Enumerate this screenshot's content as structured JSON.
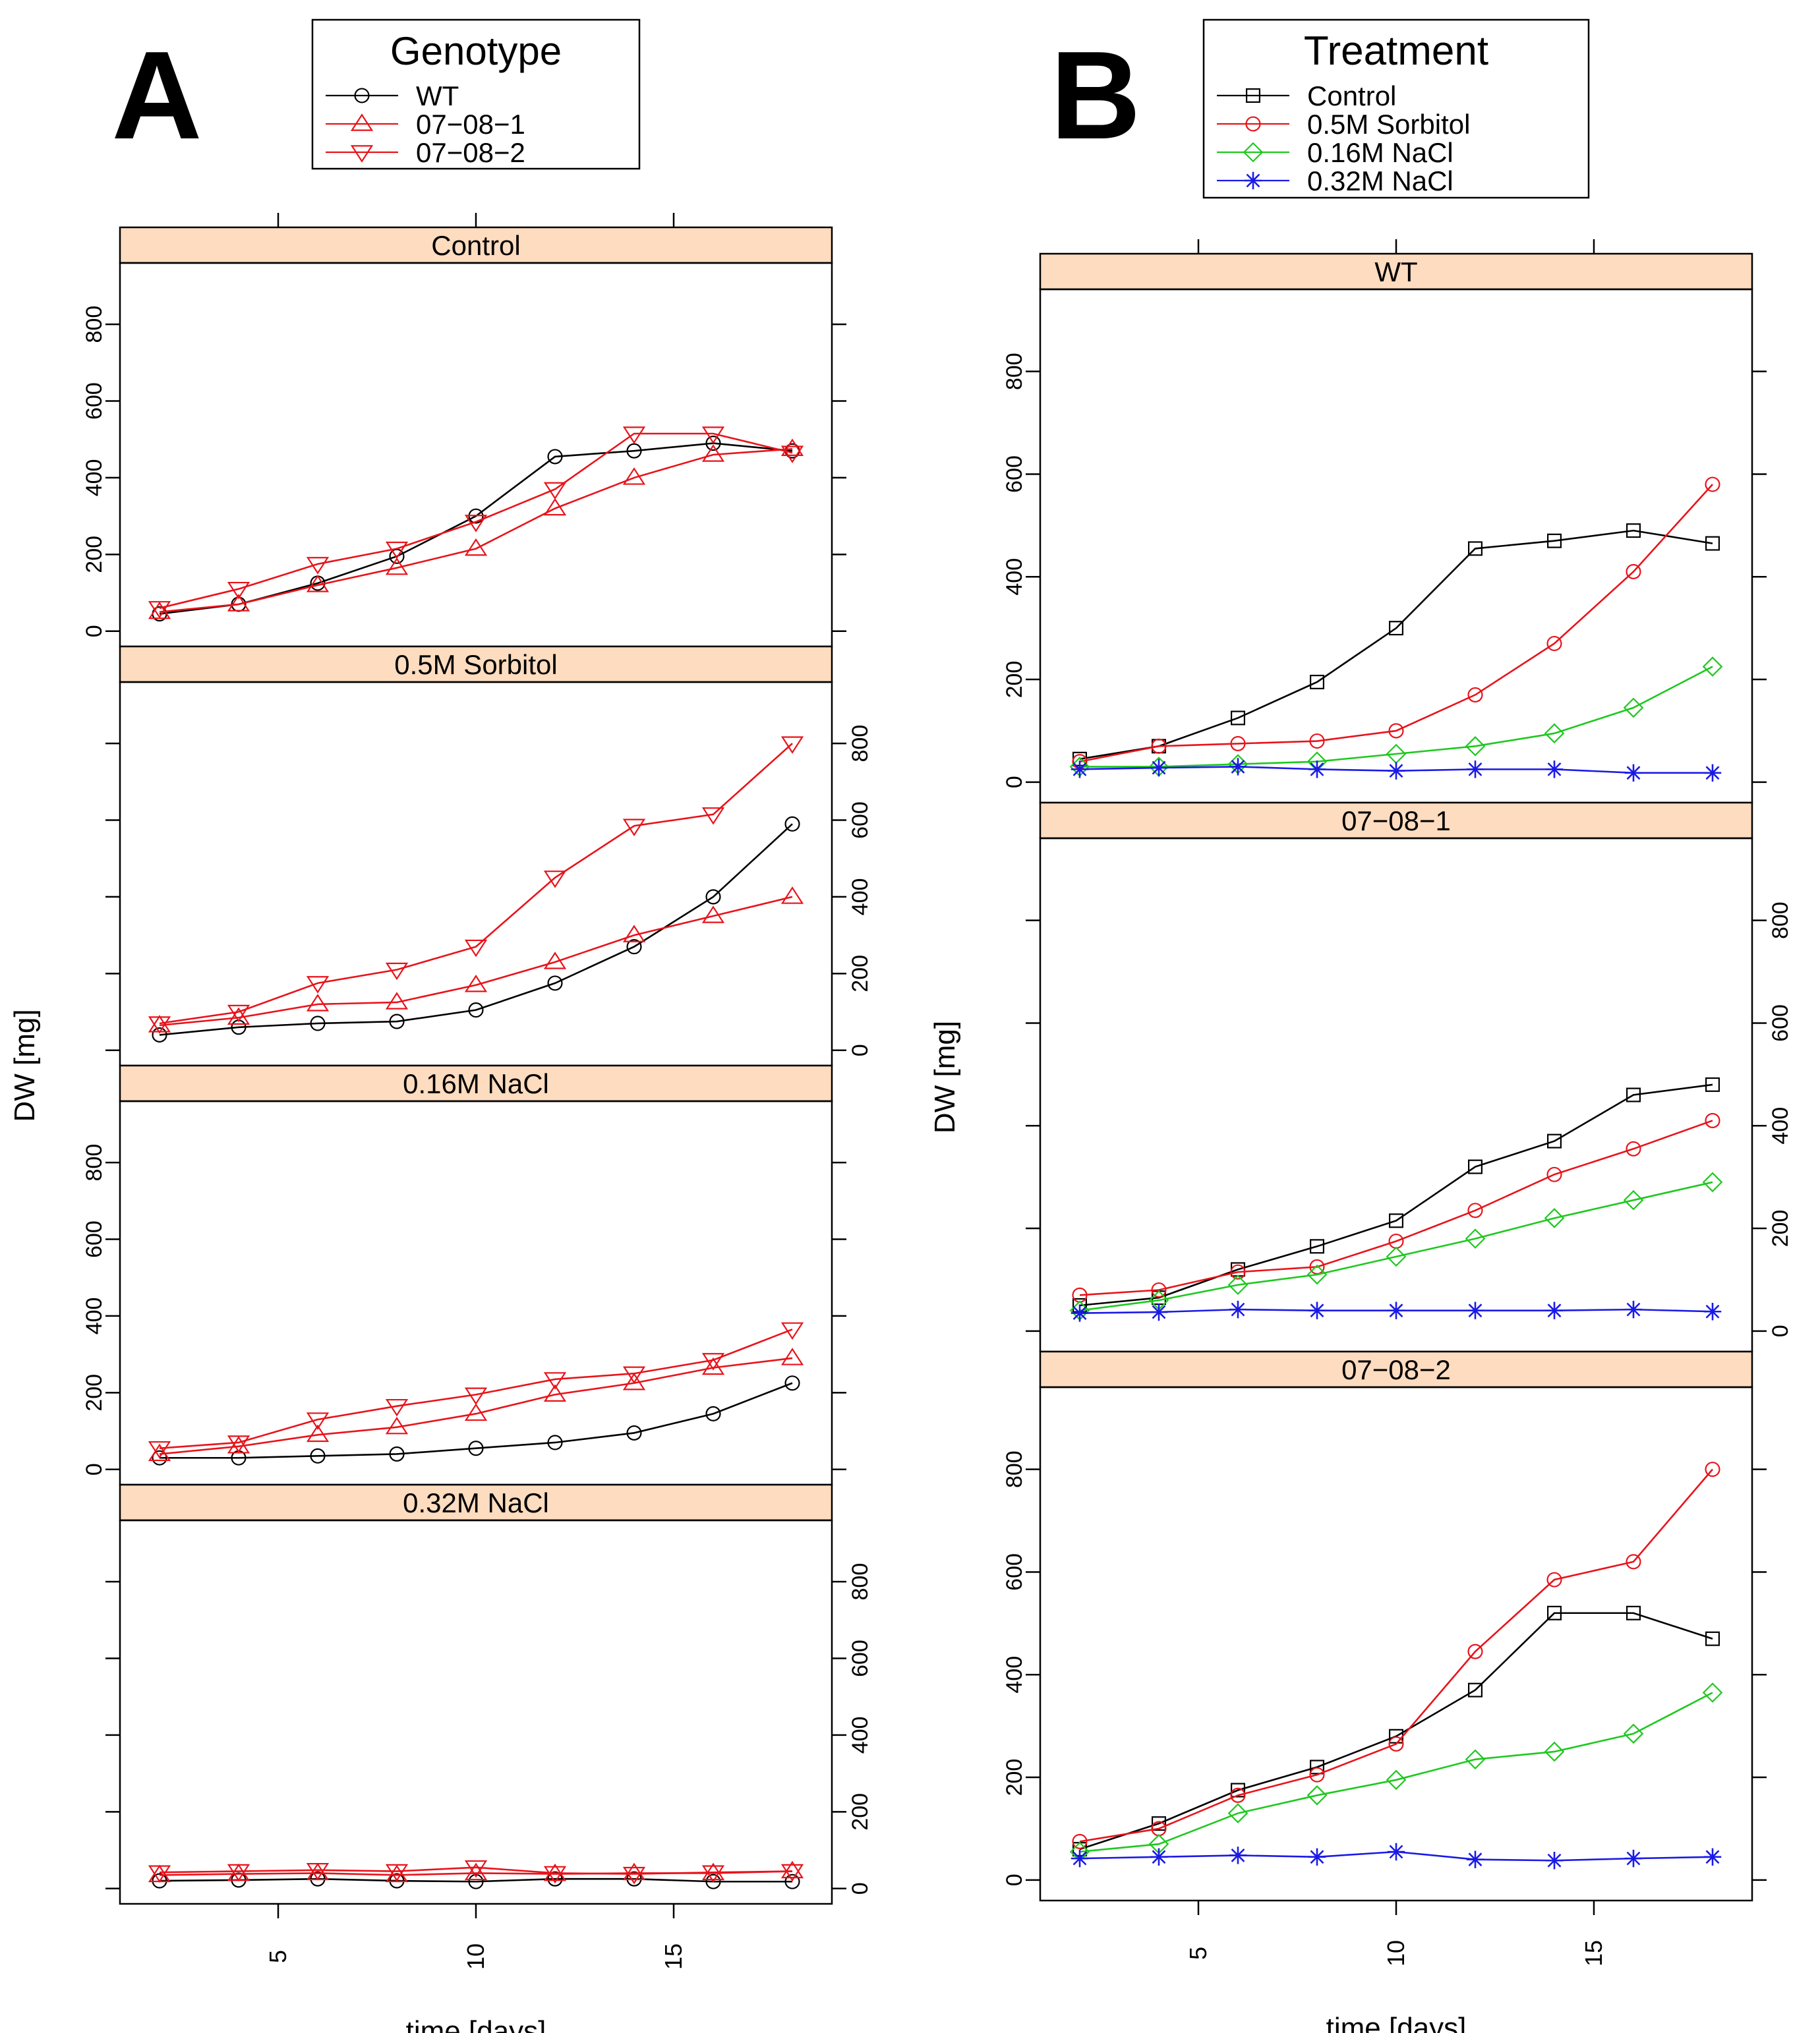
{
  "figure": {
    "panel_letters": [
      "A",
      "B"
    ],
    "y_label": "DW [mg]",
    "x_label": "time [days]"
  },
  "chart_data": [
    {
      "type": "line",
      "panel_letter": "A",
      "legend": {
        "title": "Genotype",
        "entries": [
          {
            "name": "WT",
            "color": "#000000",
            "marker": "circle"
          },
          {
            "name": "07−08−1",
            "color": "#e8131a",
            "marker": "triangle-up"
          },
          {
            "name": "07−08−2",
            "color": "#e8131a",
            "marker": "triangle-down"
          }
        ]
      },
      "xlabel": "time [days]",
      "ylabel": "DW [mg]",
      "xlim": [
        1,
        19
      ],
      "ylim": [
        -40,
        960
      ],
      "x_ticks": [
        5,
        10,
        15
      ],
      "y_ticks": [
        0,
        200,
        400,
        600,
        800
      ],
      "x": [
        2,
        4,
        6,
        8,
        10,
        12,
        14,
        16,
        18
      ],
      "panels": [
        {
          "title": "Control",
          "series": [
            {
              "name": "WT",
              "values": [
                45,
                70,
                125,
                195,
                300,
                455,
                470,
                490,
                470
              ]
            },
            {
              "name": "07−08−1",
              "values": [
                50,
                70,
                120,
                165,
                215,
                320,
                400,
                460,
                475
              ]
            },
            {
              "name": "07−08−2",
              "values": [
                60,
                110,
                175,
                215,
                285,
                370,
                515,
                515,
                465
              ]
            }
          ]
        },
        {
          "title": "0.5M Sorbitol",
          "series": [
            {
              "name": "WT",
              "values": [
                40,
                60,
                70,
                75,
                105,
                175,
                270,
                400,
                590
              ]
            },
            {
              "name": "07−08−1",
              "values": [
                65,
                85,
                120,
                125,
                170,
                230,
                300,
                350,
                400
              ]
            },
            {
              "name": "07−08−2",
              "values": [
                70,
                100,
                175,
                210,
                270,
                450,
                585,
                615,
                800
              ]
            }
          ]
        },
        {
          "title": "0.16M NaCl",
          "series": [
            {
              "name": "WT",
              "values": [
                30,
                30,
                35,
                40,
                55,
                70,
                95,
                145,
                225
              ]
            },
            {
              "name": "07−08−1",
              "values": [
                40,
                60,
                90,
                110,
                145,
                195,
                225,
                265,
                290
              ]
            },
            {
              "name": "07−08−2",
              "values": [
                55,
                70,
                130,
                165,
                195,
                235,
                250,
                285,
                365
              ]
            }
          ]
        },
        {
          "title": "0.32M NaCl",
          "series": [
            {
              "name": "WT",
              "values": [
                20,
                22,
                25,
                20,
                18,
                25,
                25,
                18,
                18
              ]
            },
            {
              "name": "07−08−1",
              "values": [
                35,
                38,
                40,
                35,
                40,
                38,
                40,
                40,
                45
              ]
            },
            {
              "name": "07−08−2",
              "values": [
                42,
                45,
                48,
                45,
                55,
                40,
                38,
                42,
                45
              ]
            }
          ]
        }
      ]
    },
    {
      "type": "line",
      "panel_letter": "B",
      "legend": {
        "title": "Treatment",
        "entries": [
          {
            "name": "Control",
            "color": "#000000",
            "marker": "square"
          },
          {
            "name": "0.5M Sorbitol",
            "color": "#e8131a",
            "marker": "circle"
          },
          {
            "name": "0.16M NaCl",
            "color": "#1ec81e",
            "marker": "diamond"
          },
          {
            "name": "0.32M NaCl",
            "color": "#1a1ae6",
            "marker": "star"
          }
        ]
      },
      "xlabel": "time [days]",
      "ylabel": "DW [mg]",
      "xlim": [
        1,
        19
      ],
      "ylim": [
        -40,
        960
      ],
      "x_ticks": [
        5,
        10,
        15
      ],
      "y_ticks": [
        0,
        200,
        400,
        600,
        800
      ],
      "x": [
        2,
        4,
        6,
        8,
        10,
        12,
        14,
        16,
        18
      ],
      "panels": [
        {
          "title": "WT",
          "series": [
            {
              "name": "Control",
              "values": [
                45,
                70,
                125,
                195,
                300,
                455,
                470,
                490,
                465
              ]
            },
            {
              "name": "0.5M Sorbitol",
              "values": [
                40,
                70,
                75,
                80,
                100,
                170,
                270,
                410,
                580
              ]
            },
            {
              "name": "0.16M NaCl",
              "values": [
                30,
                30,
                35,
                40,
                55,
                70,
                95,
                145,
                225
              ]
            },
            {
              "name": "0.32M NaCl",
              "values": [
                25,
                28,
                30,
                25,
                22,
                25,
                25,
                18,
                18
              ]
            }
          ]
        },
        {
          "title": "07−08−1",
          "series": [
            {
              "name": "Control",
              "values": [
                50,
                65,
                120,
                165,
                215,
                320,
                370,
                460,
                480
              ]
            },
            {
              "name": "0.5M Sorbitol",
              "values": [
                70,
                80,
                115,
                125,
                175,
                235,
                305,
                355,
                410
              ]
            },
            {
              "name": "0.16M NaCl",
              "values": [
                40,
                60,
                90,
                110,
                145,
                180,
                220,
                255,
                290
              ]
            },
            {
              "name": "0.32M NaCl",
              "values": [
                35,
                37,
                42,
                40,
                40,
                40,
                40,
                42,
                38
              ]
            }
          ]
        },
        {
          "title": "07−08−2",
          "series": [
            {
              "name": "Control",
              "values": [
                60,
                110,
                175,
                220,
                280,
                370,
                520,
                520,
                470
              ]
            },
            {
              "name": "0.5M Sorbitol",
              "values": [
                75,
                100,
                165,
                205,
                265,
                445,
                585,
                620,
                800
              ]
            },
            {
              "name": "0.16M NaCl",
              "values": [
                55,
                70,
                130,
                165,
                195,
                235,
                250,
                285,
                365
              ]
            },
            {
              "name": "0.32M NaCl",
              "values": [
                42,
                45,
                48,
                45,
                55,
                40,
                38,
                42,
                45
              ]
            }
          ]
        }
      ]
    }
  ]
}
